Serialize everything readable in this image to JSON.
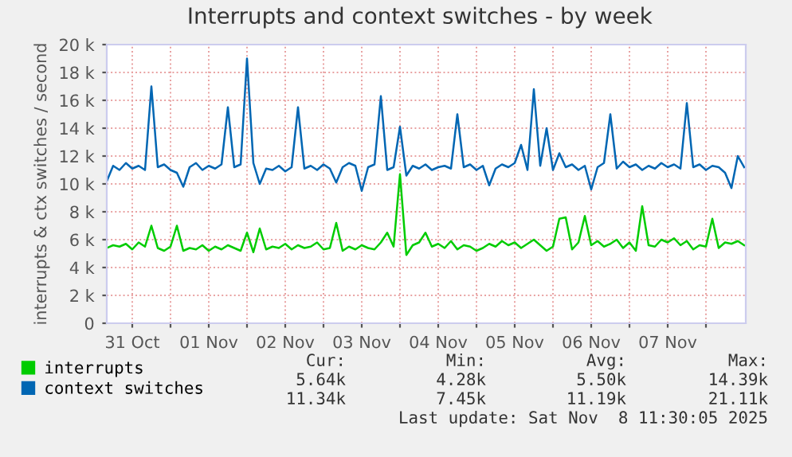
{
  "chart_data": {
    "type": "line",
    "title": "Interrupts and context switches - by week",
    "ylabel": "interrupts & ctx switches / second",
    "x": [
      "2025-10-31T04:00",
      "2025-10-31T06:00",
      "2025-10-31T08:00",
      "2025-10-31T10:00",
      "2025-10-31T12:00",
      "2025-10-31T14:00",
      "2025-10-31T16:00",
      "2025-10-31T18:00",
      "2025-10-31T20:00",
      "2025-10-31T22:00",
      "2025-11-01T00:00",
      "2025-11-01T02:00",
      "2025-11-01T04:00",
      "2025-11-01T06:00",
      "2025-11-01T08:00",
      "2025-11-01T10:00",
      "2025-11-01T12:00",
      "2025-11-01T14:00",
      "2025-11-01T16:00",
      "2025-11-01T18:00",
      "2025-11-01T20:00",
      "2025-11-01T22:00",
      "2025-11-02T00:00",
      "2025-11-02T02:00",
      "2025-11-02T04:00",
      "2025-11-02T06:00",
      "2025-11-02T08:00",
      "2025-11-02T10:00",
      "2025-11-02T12:00",
      "2025-11-02T14:00",
      "2025-11-02T16:00",
      "2025-11-02T18:00",
      "2025-11-02T20:00",
      "2025-11-02T22:00",
      "2025-11-03T00:00",
      "2025-11-03T02:00",
      "2025-11-03T04:00",
      "2025-11-03T06:00",
      "2025-11-03T08:00",
      "2025-11-03T10:00",
      "2025-11-03T12:00",
      "2025-11-03T14:00",
      "2025-11-03T16:00",
      "2025-11-03T18:00",
      "2025-11-03T20:00",
      "2025-11-03T22:00",
      "2025-11-04T00:00",
      "2025-11-04T02:00",
      "2025-11-04T04:00",
      "2025-11-04T06:00",
      "2025-11-04T08:00",
      "2025-11-04T10:00",
      "2025-11-04T12:00",
      "2025-11-04T14:00",
      "2025-11-04T16:00",
      "2025-11-04T18:00",
      "2025-11-04T20:00",
      "2025-11-04T22:00",
      "2025-11-05T00:00",
      "2025-11-05T02:00",
      "2025-11-05T04:00",
      "2025-11-05T06:00",
      "2025-11-05T08:00",
      "2025-11-05T10:00",
      "2025-11-05T12:00",
      "2025-11-05T14:00",
      "2025-11-05T16:00",
      "2025-11-05T18:00",
      "2025-11-05T20:00",
      "2025-11-05T22:00",
      "2025-11-06T00:00",
      "2025-11-06T02:00",
      "2025-11-06T04:00",
      "2025-11-06T06:00",
      "2025-11-06T08:00",
      "2025-11-06T10:00",
      "2025-11-06T12:00",
      "2025-11-06T14:00",
      "2025-11-06T16:00",
      "2025-11-06T18:00",
      "2025-11-06T20:00",
      "2025-11-06T22:00",
      "2025-11-07T00:00",
      "2025-11-07T02:00",
      "2025-11-07T04:00",
      "2025-11-07T06:00",
      "2025-11-07T08:00",
      "2025-11-07T10:00",
      "2025-11-07T12:00",
      "2025-11-07T14:00",
      "2025-11-07T16:00",
      "2025-11-07T18:00",
      "2025-11-07T20:00",
      "2025-11-07T22:00",
      "2025-11-08T00:00",
      "2025-11-08T02:00",
      "2025-11-08T04:00",
      "2025-11-08T06:00",
      "2025-11-08T08:00",
      "2025-11-08T10:00",
      "2025-11-08T12:00"
    ],
    "series": [
      {
        "name": "interrupts",
        "color": "#00cc00",
        "values": [
          5.4,
          5.6,
          5.5,
          5.7,
          5.3,
          5.8,
          5.5,
          7.0,
          5.4,
          5.2,
          5.5,
          7.0,
          5.2,
          5.4,
          5.3,
          5.6,
          5.2,
          5.5,
          5.3,
          5.6,
          5.4,
          5.2,
          6.5,
          5.1,
          6.8,
          5.3,
          5.5,
          5.4,
          5.7,
          5.3,
          5.6,
          5.4,
          5.5,
          5.8,
          5.3,
          5.4,
          7.2,
          5.2,
          5.5,
          5.3,
          5.6,
          5.4,
          5.3,
          5.8,
          6.5,
          5.5,
          10.7,
          4.9,
          5.6,
          5.8,
          6.5,
          5.5,
          5.7,
          5.4,
          5.9,
          5.3,
          5.6,
          5.5,
          5.2,
          5.4,
          5.7,
          5.5,
          5.9,
          5.6,
          5.8,
          5.4,
          5.7,
          6.0,
          5.6,
          5.2,
          5.5,
          7.5,
          7.6,
          5.3,
          5.8,
          7.7,
          5.6,
          5.9,
          5.5,
          5.7,
          6.0,
          5.4,
          5.8,
          5.2,
          8.4,
          5.6,
          5.5,
          6.0,
          5.8,
          6.1,
          5.6,
          5.9,
          5.3,
          5.6,
          5.5,
          7.5,
          5.4,
          5.8,
          5.7,
          5.9,
          5.6
        ]
      },
      {
        "name": "context switches",
        "color": "#0066b3",
        "values": [
          10.2,
          11.3,
          11.0,
          11.5,
          11.1,
          11.3,
          11.0,
          17.0,
          11.2,
          11.4,
          11.0,
          10.8,
          9.8,
          11.2,
          11.5,
          11.0,
          11.3,
          11.1,
          11.4,
          15.5,
          11.2,
          11.4,
          19.0,
          11.5,
          10.0,
          11.1,
          11.0,
          11.3,
          10.9,
          11.2,
          15.5,
          11.1,
          11.3,
          11.0,
          11.4,
          11.1,
          10.1,
          11.2,
          11.5,
          11.3,
          9.5,
          11.2,
          11.4,
          16.3,
          11.0,
          11.2,
          14.1,
          10.6,
          11.3,
          11.1,
          11.4,
          11.0,
          11.2,
          11.3,
          11.1,
          15.0,
          11.2,
          11.4,
          11.0,
          11.3,
          9.9,
          11.1,
          11.4,
          11.2,
          11.5,
          12.8,
          11.0,
          16.8,
          11.3,
          14.0,
          11.0,
          12.2,
          11.2,
          11.4,
          11.0,
          11.3,
          9.6,
          11.2,
          11.5,
          15.0,
          11.1,
          11.6,
          11.2,
          11.4,
          11.0,
          11.3,
          11.1,
          11.5,
          11.2,
          11.4,
          11.1,
          15.8,
          11.2,
          11.4,
          11.0,
          11.3,
          11.2,
          10.8,
          9.7,
          12.0,
          11.2
        ]
      }
    ],
    "xlim": [
      "2025-10-31T04:00",
      "2025-11-08T12:30"
    ],
    "xticks": [
      {
        "value": "2025-10-31T12:00",
        "label": "31 Oct"
      },
      {
        "value": "2025-11-01T00:00",
        "label": null
      },
      {
        "value": "2025-11-01T12:00",
        "label": "01 Nov"
      },
      {
        "value": "2025-11-02T00:00",
        "label": null
      },
      {
        "value": "2025-11-02T12:00",
        "label": "02 Nov"
      },
      {
        "value": "2025-11-03T00:00",
        "label": null
      },
      {
        "value": "2025-11-03T12:00",
        "label": "03 Nov"
      },
      {
        "value": "2025-11-04T00:00",
        "label": null
      },
      {
        "value": "2025-11-04T12:00",
        "label": "04 Nov"
      },
      {
        "value": "2025-11-05T00:00",
        "label": null
      },
      {
        "value": "2025-11-05T12:00",
        "label": "05 Nov"
      },
      {
        "value": "2025-11-06T00:00",
        "label": null
      },
      {
        "value": "2025-11-06T12:00",
        "label": "06 Nov"
      },
      {
        "value": "2025-11-07T00:00",
        "label": null
      },
      {
        "value": "2025-11-07T12:00",
        "label": "07 Nov"
      },
      {
        "value": "2025-11-08T00:00",
        "label": null
      }
    ],
    "ylim": [
      0,
      20
    ],
    "yticks": [
      0,
      {
        "value": 2,
        "label": "2 k"
      },
      {
        "value": 4,
        "label": "4 k"
      },
      {
        "value": 6,
        "label": "6 k"
      },
      {
        "value": 8,
        "label": "8 k"
      },
      {
        "value": 10,
        "label": "10 k"
      },
      {
        "value": 12,
        "label": "12 k"
      },
      {
        "value": 14,
        "label": "14 k"
      },
      {
        "value": 16,
        "label": "16 k"
      },
      {
        "value": 18,
        "label": "18 k"
      },
      {
        "value": 20,
        "label": "20 k"
      }
    ],
    "grid": true,
    "legend": "bottom",
    "marker": "none",
    "line_style": "solid",
    "annotations": [
      "Cur:",
      "Min:",
      "Avg:",
      "Max:",
      "5.64k",
      "4.28k",
      "5.50k",
      "14.39k",
      "11.34k",
      "7.45k",
      "11.19k",
      "21.11k",
      "Last update: Sat Nov  8 11:30:05 2025"
    ]
  }
}
